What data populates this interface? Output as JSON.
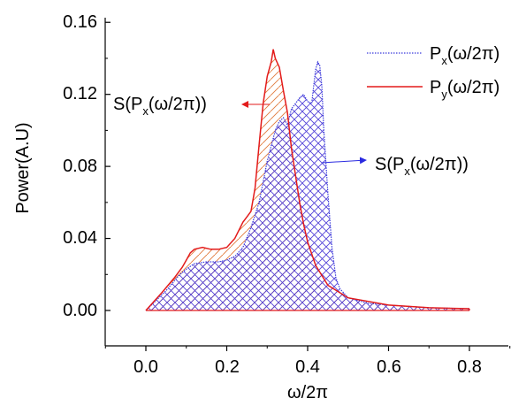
{
  "chart_data": {
    "type": "area",
    "xlabel": "ω/2π",
    "ylabel": "Power(A.U)",
    "xlim": [
      -0.1,
      0.9
    ],
    "ylim": [
      -0.02,
      0.16
    ],
    "x_ticks": [
      "0.0",
      "0.2",
      "0.4",
      "0.6",
      "0.8"
    ],
    "y_ticks": [
      "0.00",
      "0.04",
      "0.08",
      "0.12",
      "0.16"
    ],
    "grid": false,
    "legend_position": "top-right",
    "series": [
      {
        "legend_main": "P",
        "legend_sub": "x",
        "legend_tail": "(ω/2π)",
        "color": "#3a3adc",
        "line_style": "dotted",
        "x": [
          0.0,
          0.05,
          0.08,
          0.1,
          0.12,
          0.15,
          0.18,
          0.2,
          0.22,
          0.24,
          0.26,
          0.28,
          0.3,
          0.32,
          0.33,
          0.34,
          0.35,
          0.36,
          0.37,
          0.38,
          0.39,
          0.4,
          0.41,
          0.415,
          0.42,
          0.425,
          0.43,
          0.435,
          0.44,
          0.45,
          0.46,
          0.47,
          0.48,
          0.5,
          0.55,
          0.6,
          0.7,
          0.8
        ],
        "y": [
          0.0,
          0.011,
          0.019,
          0.023,
          0.026,
          0.027,
          0.027,
          0.028,
          0.03,
          0.035,
          0.046,
          0.06,
          0.083,
          0.1,
          0.105,
          0.107,
          0.103,
          0.112,
          0.115,
          0.118,
          0.12,
          0.116,
          0.115,
          0.125,
          0.134,
          0.138,
          0.136,
          0.125,
          0.1,
          0.065,
          0.035,
          0.018,
          0.012,
          0.007,
          0.004,
          0.003,
          0.0015,
          0.001
        ]
      },
      {
        "legend_main": "P",
        "legend_sub": "y",
        "legend_tail": "(ω/2π)",
        "color": "#e31b1b",
        "line_style": "solid",
        "x": [
          0.0,
          0.04,
          0.07,
          0.09,
          0.1,
          0.11,
          0.12,
          0.14,
          0.16,
          0.18,
          0.2,
          0.22,
          0.24,
          0.25,
          0.26,
          0.27,
          0.28,
          0.29,
          0.3,
          0.31,
          0.315,
          0.32,
          0.33,
          0.34,
          0.35,
          0.36,
          0.37,
          0.38,
          0.39,
          0.4,
          0.42,
          0.45,
          0.5,
          0.6,
          0.7,
          0.8
        ],
        "y": [
          0.0,
          0.01,
          0.018,
          0.024,
          0.028,
          0.032,
          0.034,
          0.035,
          0.034,
          0.034,
          0.035,
          0.04,
          0.049,
          0.052,
          0.055,
          0.068,
          0.092,
          0.115,
          0.13,
          0.138,
          0.145,
          0.14,
          0.135,
          0.122,
          0.11,
          0.09,
          0.075,
          0.06,
          0.048,
          0.038,
          0.025,
          0.014,
          0.007,
          0.003,
          0.0015,
          0.001
        ]
      }
    ],
    "annotations": [
      {
        "main": "S(P",
        "sub": "x",
        "tail": "(ω/2π))",
        "arrow_to_x": 0.293,
        "arrow_to_y": 0.1145,
        "side": "left"
      },
      {
        "main": "S(P",
        "sub": "x",
        "tail": "(ω/2π))",
        "arrow_to_x": 0.394,
        "arrow_to_y": 0.0827,
        "side": "right"
      }
    ]
  }
}
